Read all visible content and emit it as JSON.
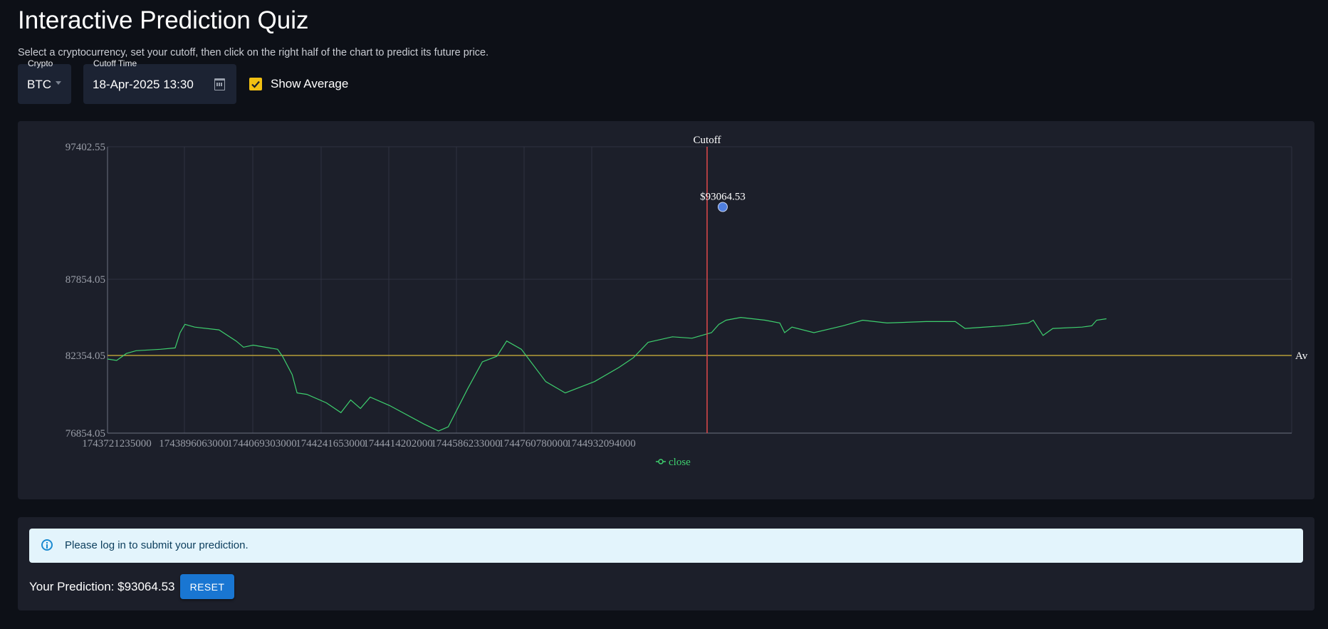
{
  "header": {
    "title": "Interactive Prediction Quiz",
    "subtitle": "Select a cryptocurrency, set your cutoff, then click on the right half of the chart to predict its future price."
  },
  "controls": {
    "crypto": {
      "label": "Crypto",
      "value": "BTC"
    },
    "cutoff": {
      "label": "Cutoff Time",
      "value": "18-Apr-2025 13:30"
    },
    "show_average": {
      "label": "Show Average",
      "checked": true
    }
  },
  "chart": {
    "y_ticks": [
      "97402.55",
      "87854.05",
      "82354.05",
      "76854.05"
    ],
    "x_ticks": [
      "1743721235000",
      "1743896063000",
      "1744069303000",
      "1744241653000",
      "1744414202000",
      "1744586233000",
      "1744760780000",
      "1744932094000"
    ],
    "cutoff_label": "Cutoff",
    "prediction_label": "$93064.53",
    "average_label": "Av",
    "legend": "close"
  },
  "chart_data": {
    "type": "line",
    "series": [
      {
        "name": "close",
        "color": "#3ecf6e",
        "points": [
          [
            1743721235000,
            82100
          ],
          [
            1743740000000,
            82000
          ],
          [
            1743760000000,
            82500
          ],
          [
            1743780000000,
            82700
          ],
          [
            1743830000000,
            82800
          ],
          [
            1743860000000,
            82900
          ],
          [
            1743870000000,
            84000
          ],
          [
            1743880000000,
            84600
          ],
          [
            1743900000000,
            84400
          ],
          [
            1743950000000,
            84200
          ],
          [
            1743985000000,
            83400
          ],
          [
            1744000000000,
            82950
          ],
          [
            1744020000000,
            83100
          ],
          [
            1744070000000,
            82800
          ],
          [
            1744080000000,
            82300
          ],
          [
            1744100000000,
            81000
          ],
          [
            1744110000000,
            79700
          ],
          [
            1744130000000,
            79600
          ],
          [
            1744170000000,
            79000
          ],
          [
            1744200000000,
            78300
          ],
          [
            1744220000000,
            79200
          ],
          [
            1744240000000,
            78600
          ],
          [
            1744260000000,
            79400
          ],
          [
            1744300000000,
            78800
          ],
          [
            1744370000000,
            77500
          ],
          [
            1744400000000,
            77000
          ],
          [
            1744420000000,
            77300
          ],
          [
            1744460000000,
            80000
          ],
          [
            1744490000000,
            81900
          ],
          [
            1744520000000,
            82300
          ],
          [
            1744540000000,
            83400
          ],
          [
            1744570000000,
            82800
          ],
          [
            1744620000000,
            80500
          ],
          [
            1744660000000,
            79700
          ],
          [
            1744720000000,
            80500
          ],
          [
            1744770000000,
            81500
          ],
          [
            1744800000000,
            82200
          ],
          [
            1744830000000,
            83300
          ],
          [
            1744880000000,
            83700
          ],
          [
            1744920000000,
            83600
          ],
          [
            1744960000000,
            84000
          ],
          [
            1744975000000,
            84600
          ],
          [
            1744990000000,
            84900
          ],
          [
            1745020000000,
            85100
          ],
          [
            1745070000000,
            84900
          ],
          [
            1745100000000,
            84700
          ],
          [
            1745110000000,
            84000
          ],
          [
            1745125000000,
            84400
          ],
          [
            1745170000000,
            84000
          ],
          [
            1745230000000,
            84500
          ],
          [
            1745270000000,
            84900
          ],
          [
            1745320000000,
            84700
          ],
          [
            1745400000000,
            84800
          ],
          [
            1745460000000,
            84800
          ],
          [
            1745480000000,
            84300
          ],
          [
            1745560000000,
            84500
          ],
          [
            1745610000000,
            84700
          ],
          [
            1745620000000,
            84900
          ],
          [
            1745640000000,
            83800
          ],
          [
            1745660000000,
            84300
          ],
          [
            1745720000000,
            84400
          ],
          [
            1745740000000,
            84500
          ],
          [
            1745750000000,
            84900
          ],
          [
            1745770000000,
            85000
          ]
        ]
      }
    ],
    "cutoff_x": 1744932094000,
    "prediction": {
      "x": 1744960000000,
      "y": 93064.53
    },
    "average": 82354.05,
    "xlim": [
      1743721235000,
      1746150000000
    ],
    "ylim": [
      76854.05,
      97402.55
    ],
    "grid": true,
    "legend_position": "bottom-center",
    "colors": {
      "line": "#3ecf6e",
      "cutoff": "#e0484a",
      "average": "#d4b63a",
      "prediction": "#4f7fe0"
    }
  },
  "result": {
    "alert_text": "Please log in to submit your prediction.",
    "prediction_text": "Your Prediction: $93064.53",
    "reset_label": "RESET"
  }
}
